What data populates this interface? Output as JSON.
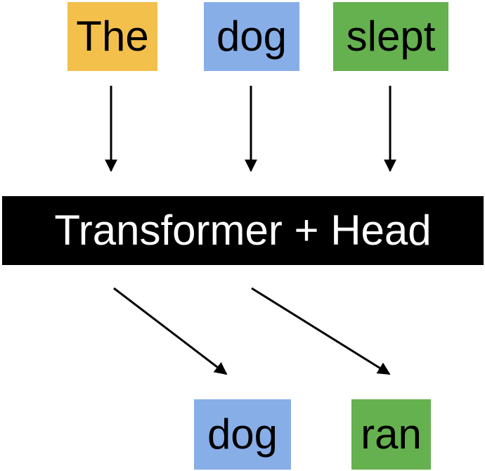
{
  "input_tokens": [
    {
      "text": "The",
      "color": "#F4C04C"
    },
    {
      "text": "dog",
      "color": "#88AEE8"
    },
    {
      "text": "slept",
      "color": "#65B14F"
    }
  ],
  "model": {
    "label": "Transformer + Head",
    "background": "#000000",
    "text_color": "#FFFFFF"
  },
  "output_tokens": [
    {
      "text": "dog",
      "color": "#88AEE8"
    },
    {
      "text": "ran",
      "color": "#65B14F"
    }
  ]
}
